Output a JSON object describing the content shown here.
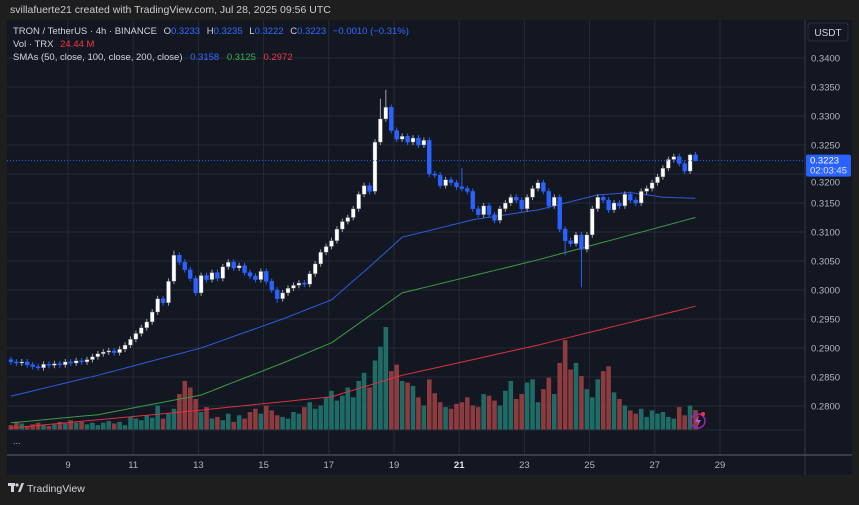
{
  "header": {
    "credit": "svillafuerte21 created with TradingView.com, Jul 28, 2025 09:56 UTC",
    "symbol": "TRON / TetherUS · 4h · BINANCE",
    "o_label": "O",
    "o": "0.3233",
    "h_label": "H",
    "h": "0.3235",
    "l_label": "L",
    "l": "0.3222",
    "c_label": "C",
    "c": "0.3223",
    "change": "−0.0010 (−0.31%)",
    "vol_label": "Vol · TRX",
    "vol": "24.44 M",
    "sma_label": "SMAs (50, close, 100, close, 200, close)",
    "sma50": "0.3158",
    "sma100": "0.3125",
    "sma200": "0.2972"
  },
  "currency_button": "USDT",
  "last_price": {
    "value": "0.3223",
    "countdown": "02:03:45"
  },
  "more_label": "...",
  "footer": {
    "brand": "TradingView"
  },
  "colors": {
    "up": "#ffffff",
    "down": "#2962ff",
    "vol_up": "#1f6b66",
    "vol_down": "#8c3b3f",
    "sma50": "#2f5bd8",
    "sma100": "#3e9a45",
    "sma200": "#d8333f",
    "bg": "#131722",
    "grid": "#262a35"
  },
  "chart_data": {
    "type": "candlestick",
    "title": "TRON / TetherUS · 4h · BINANCE",
    "interval_hours": 4,
    "start_day": 7,
    "start_hour": 4,
    "ylim": [
      0.2775,
      0.3445
    ],
    "y_ticks": [
      "0.3400",
      "0.3350",
      "0.3300",
      "0.3250",
      "0.3200",
      "0.3150",
      "0.3100",
      "0.3050",
      "0.3000",
      "0.2950",
      "0.2900",
      "0.2850",
      "0.2800"
    ],
    "x_ticks": [
      {
        "day": 9,
        "label": "9"
      },
      {
        "day": 11,
        "label": "11"
      },
      {
        "day": 13,
        "label": "13"
      },
      {
        "day": 15,
        "label": "15"
      },
      {
        "day": 17,
        "label": "17"
      },
      {
        "day": 19,
        "label": "19"
      },
      {
        "day": 21,
        "label": "21"
      },
      {
        "day": 23,
        "label": "23"
      },
      {
        "day": 25,
        "label": "25"
      },
      {
        "day": 27,
        "label": "27"
      },
      {
        "day": 29,
        "label": "29"
      }
    ],
    "first_open": 0.288,
    "closes": [
      0.2876,
      0.2874,
      0.2876,
      0.2871,
      0.2868,
      0.2866,
      0.2872,
      0.287,
      0.2873,
      0.2871,
      0.2876,
      0.2874,
      0.2878,
      0.2876,
      0.288,
      0.2885,
      0.289,
      0.2893,
      0.2895,
      0.2892,
      0.2898,
      0.2905,
      0.2915,
      0.2925,
      0.2935,
      0.2945,
      0.2962,
      0.2985,
      0.2978,
      0.3015,
      0.306,
      0.3048,
      0.3035,
      0.302,
      0.2995,
      0.3025,
      0.3018,
      0.303,
      0.302,
      0.304,
      0.3048,
      0.3038,
      0.3042,
      0.303,
      0.3024,
      0.3018,
      0.3032,
      0.3015,
      0.3,
      0.2985,
      0.2995,
      0.3003,
      0.3008,
      0.3012,
      0.301,
      0.3028,
      0.3045,
      0.3065,
      0.3075,
      0.3085,
      0.3105,
      0.3118,
      0.3125,
      0.314,
      0.3165,
      0.318,
      0.317,
      0.3255,
      0.3295,
      0.3315,
      0.3275,
      0.326,
      0.3265,
      0.3255,
      0.3262,
      0.325,
      0.3258,
      0.32,
      0.3198,
      0.318,
      0.319,
      0.3185,
      0.3178,
      0.3175,
      0.317,
      0.314,
      0.313,
      0.3145,
      0.313,
      0.312,
      0.314,
      0.315,
      0.316,
      0.3155,
      0.314,
      0.316,
      0.3175,
      0.3185,
      0.317,
      0.3145,
      0.316,
      0.3105,
      0.3085,
      0.308,
      0.3095,
      0.307,
      0.3095,
      0.314,
      0.316,
      0.3155,
      0.3138,
      0.315,
      0.3145,
      0.3165,
      0.3155,
      0.315,
      0.317,
      0.3175,
      0.3185,
      0.3195,
      0.321,
      0.3225,
      0.323,
      0.3218,
      0.3205,
      0.3233,
      0.3223
    ],
    "high_overrides": {
      "30": 0.3068,
      "68": 0.333,
      "69": 0.3345,
      "83": 0.321,
      "104": 0.31,
      "125": 0.3235
    },
    "low_overrides": {
      "49": 0.2978,
      "105": 0.3005,
      "102": 0.306,
      "126": 0.3222
    },
    "volume_millions": [
      6,
      10,
      8,
      5,
      7,
      9,
      6,
      5,
      7,
      10,
      8,
      12,
      9,
      10,
      7,
      9,
      6,
      9,
      11,
      8,
      10,
      6,
      16,
      14,
      12,
      18,
      15,
      30,
      14,
      20,
      26,
      44,
      60,
      52,
      38,
      22,
      28,
      14,
      16,
      12,
      20,
      10,
      18,
      14,
      22,
      26,
      20,
      30,
      24,
      18,
      16,
      14,
      22,
      20,
      28,
      34,
      26,
      30,
      40,
      48,
      36,
      42,
      52,
      40,
      60,
      70,
      52,
      85,
      102,
      126,
      72,
      80,
      60,
      58,
      54,
      40,
      30,
      62,
      45,
      34,
      28,
      26,
      32,
      34,
      40,
      30,
      28,
      44,
      42,
      36,
      30,
      48,
      60,
      38,
      44,
      58,
      62,
      34,
      50,
      64,
      44,
      82,
      110,
      74,
      82,
      66,
      50,
      40,
      62,
      72,
      78,
      46,
      38,
      30,
      24,
      20,
      26,
      16,
      24,
      20,
      22,
      16,
      14,
      28,
      18,
      30,
      24.44
    ],
    "volume_max_millions": 126,
    "sma": [
      {
        "name": "SMA 50",
        "color_key": "sma50",
        "knots": [
          [
            0,
            0.2817
          ],
          [
            16,
            0.2853
          ],
          [
            35,
            0.29
          ],
          [
            50,
            0.295
          ],
          [
            59,
            0.2983
          ],
          [
            66,
            0.304
          ],
          [
            72,
            0.3091
          ],
          [
            85,
            0.3121
          ],
          [
            97,
            0.3138
          ],
          [
            108,
            0.3164
          ],
          [
            114,
            0.3168
          ],
          [
            120,
            0.316
          ],
          [
            126,
            0.3158
          ]
        ]
      },
      {
        "name": "SMA 100",
        "color_key": "sma100",
        "knots": [
          [
            0,
            0.2771
          ],
          [
            16,
            0.2785
          ],
          [
            35,
            0.2819
          ],
          [
            50,
            0.2874
          ],
          [
            59,
            0.2909
          ],
          [
            72,
            0.2995
          ],
          [
            97,
            0.3052
          ],
          [
            126,
            0.3125
          ]
        ]
      },
      {
        "name": "SMA 200",
        "color_key": "sma200",
        "knots": [
          [
            0,
            0.2762
          ],
          [
            35,
            0.2793
          ],
          [
            59,
            0.2816
          ],
          [
            72,
            0.2853
          ],
          [
            97,
            0.2905
          ],
          [
            126,
            0.2972
          ]
        ]
      }
    ]
  }
}
